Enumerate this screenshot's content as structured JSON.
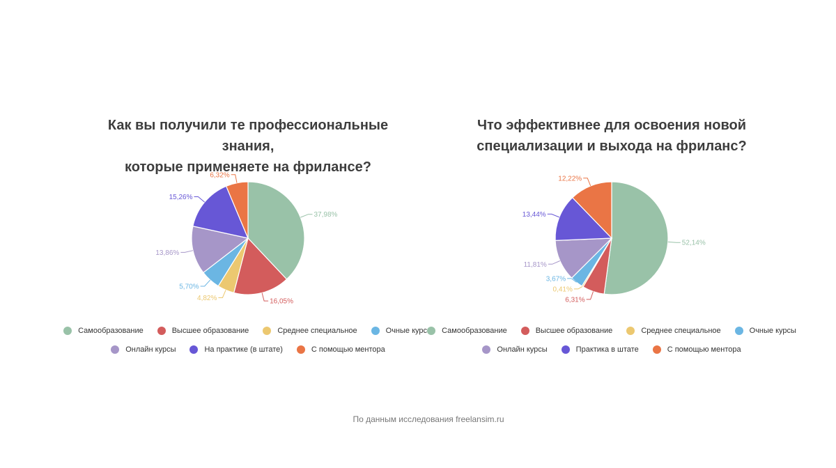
{
  "chart_data": [
    {
      "type": "pie",
      "title_lines": [
        "Как вы получили те профессиональные знания,",
        "которые применяете на фрилансе?"
      ],
      "categories": [
        "Самообразование",
        "Высшее образование",
        "Среднее специальное",
        "Очные курсы",
        "Онлайн курсы",
        "На практике (в штате)",
        "С помощью ментора"
      ],
      "values": [
        37.98,
        16.05,
        4.82,
        5.7,
        13.86,
        15.26,
        6.32
      ],
      "labels": [
        "37,98%",
        "16,05%",
        "4,82%",
        "5,70%",
        "13,86%",
        "15,26%",
        "6,32%"
      ],
      "colors": [
        "#99c2a8",
        "#d35c5c",
        "#ecc870",
        "#6bb6e3",
        "#a696c8",
        "#6757d6",
        "#ea7545"
      ],
      "legend_rows": [
        [
          0,
          1,
          2,
          3
        ],
        [
          4,
          5,
          6
        ]
      ]
    },
    {
      "type": "pie",
      "title_lines": [
        "Что эффективнее для освоения новой",
        "специализации и выхода на фриланс?"
      ],
      "categories": [
        "Самообразование",
        "Высшее образование",
        "Среднее специальное",
        "Очные курсы",
        "Онлайн курсы",
        "Практика в штате",
        "С помощью ментора"
      ],
      "values": [
        52.14,
        6.31,
        0.41,
        3.67,
        11.81,
        13.44,
        12.22
      ],
      "labels": [
        "52,14%",
        "6,31%",
        "0,41%",
        "3,67%",
        "11,81%",
        "13,44%",
        "12,22%"
      ],
      "colors": [
        "#99c2a8",
        "#d35c5c",
        "#ecc870",
        "#6bb6e3",
        "#a696c8",
        "#6757d6",
        "#ea7545"
      ],
      "legend_rows": [
        [
          0,
          1,
          2,
          3
        ],
        [
          4,
          5,
          6
        ]
      ]
    }
  ],
  "source": "По данным исследования freelansim.ru"
}
